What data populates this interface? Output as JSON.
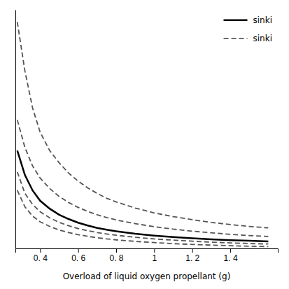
{
  "chart_data": {
    "type": "line",
    "xlabel": "Overload of liquid oxygen propellant (g)",
    "x": [
      0.28,
      0.32,
      0.36,
      0.4,
      0.45,
      0.5,
      0.55,
      0.6,
      0.65,
      0.7,
      0.75,
      0.8,
      0.9,
      1.0,
      1.1,
      1.2,
      1.3,
      1.4,
      1.5,
      1.6
    ],
    "series": [
      {
        "name": "sinki",
        "color": "#000000",
        "line_style": "solid",
        "values": [
          17.0,
          13.0,
          10.5,
          8.8,
          7.5,
          6.5,
          5.8,
          5.2,
          4.75,
          4.35,
          4.05,
          3.8,
          3.4,
          3.1,
          2.85,
          2.65,
          2.5,
          2.35,
          2.25,
          2.15
        ]
      },
      {
        "name": "sinki",
        "color": "#555555",
        "line_style": "dashed",
        "values": [
          38.0,
          30.0,
          24.0,
          20.0,
          17.0,
          15.0,
          13.3,
          12.0,
          10.9,
          10.0,
          9.2,
          8.6,
          7.6,
          6.8,
          6.2,
          5.7,
          5.25,
          4.9,
          4.6,
          4.35
        ]
      },
      {
        "color": "#555555",
        "line_style": "dashed",
        "values": [
          22.0,
          17.5,
          14.5,
          12.5,
          10.8,
          9.5,
          8.5,
          7.7,
          7.05,
          6.5,
          6.05,
          5.65,
          5.05,
          4.55,
          4.15,
          3.82,
          3.55,
          3.3,
          3.1,
          2.95
        ]
      },
      {
        "color": "#555555",
        "line_style": "dashed",
        "values": [
          13.5,
          10.0,
          8.2,
          7.0,
          6.0,
          5.25,
          4.7,
          4.25,
          3.9,
          3.6,
          3.35,
          3.15,
          2.82,
          2.55,
          2.35,
          2.18,
          2.03,
          1.9,
          1.8,
          1.72
        ]
      },
      {
        "color": "#555555",
        "line_style": "dashed",
        "values": [
          10.5,
          7.8,
          6.3,
          5.35,
          4.6,
          4.0,
          3.6,
          3.25,
          2.98,
          2.75,
          2.55,
          2.4,
          2.15,
          1.95,
          1.78,
          1.65,
          1.54,
          1.44,
          1.36,
          1.3
        ]
      }
    ],
    "xlim": [
      0.27,
      1.65
    ],
    "xticks": [
      {
        "value": 0.4,
        "label": "0. 4"
      },
      {
        "value": 0.6,
        "label": "0. 6"
      },
      {
        "value": 0.8,
        "label": "0. 8"
      },
      1,
      {
        "value": 1.2,
        "label": "1. 2"
      },
      {
        "value": 1.4,
        "label": "1. 4"
      }
    ],
    "ylim": [
      1.0,
      40.0
    ],
    "tick_labels": "x",
    "legend": "upper right"
  }
}
